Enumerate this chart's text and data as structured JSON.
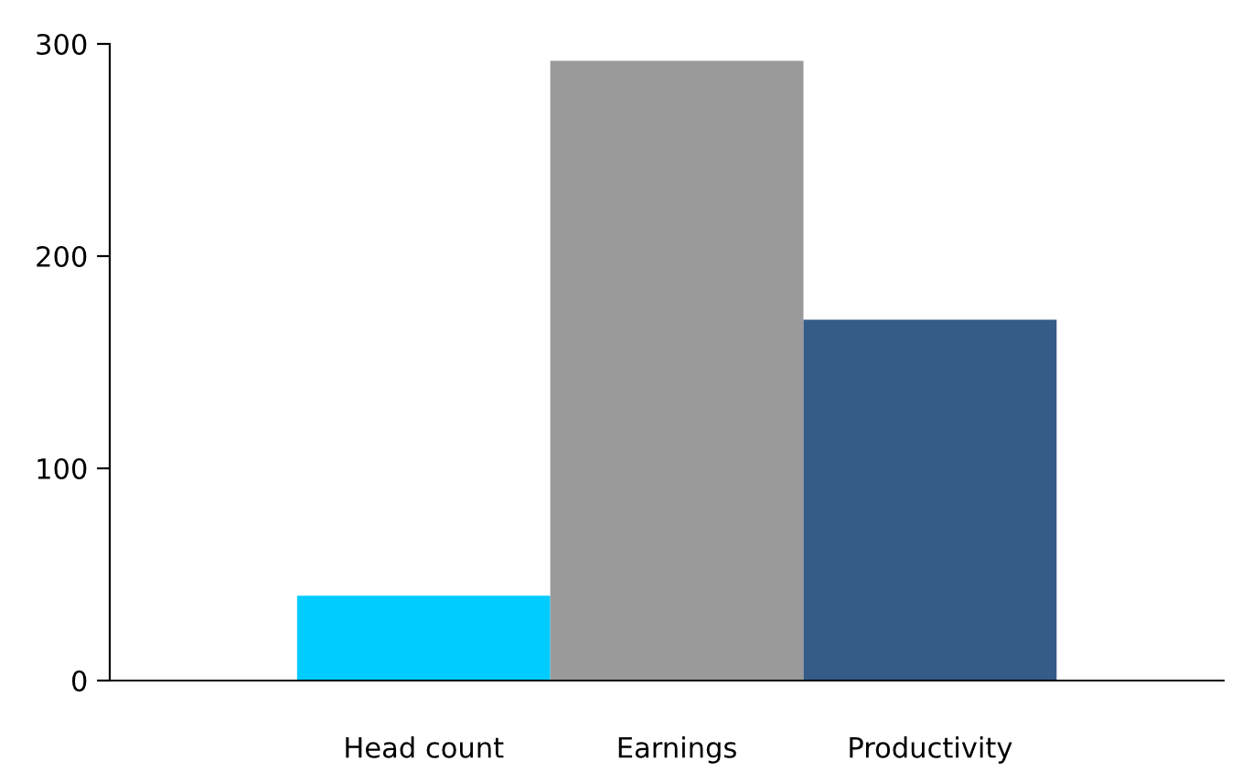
{
  "chart_data": {
    "type": "bar",
    "categories": [
      "Head count",
      "Earnings",
      "Productivity"
    ],
    "values": [
      40,
      292,
      170
    ],
    "colors": [
      "#00ccff",
      "#9a9a9a",
      "#355b87"
    ],
    "ylim": [
      0,
      300
    ],
    "yticks": [
      0,
      100,
      200,
      300
    ],
    "grid": false,
    "legend": false
  }
}
